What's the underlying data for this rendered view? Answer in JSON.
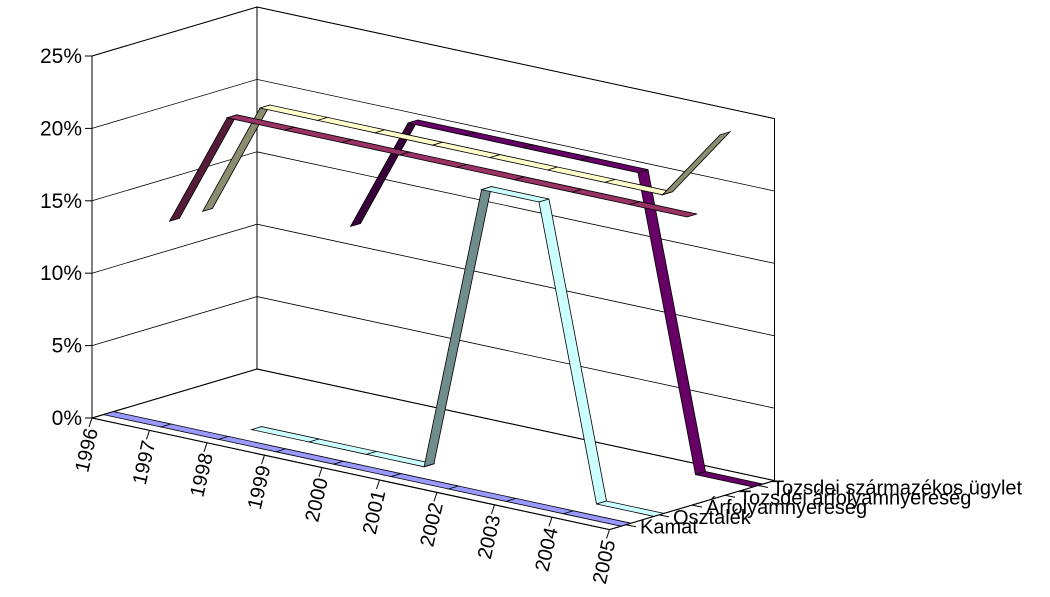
{
  "chart_data": {
    "type": "line",
    "title": "",
    "xlabel": "",
    "ylabel": "",
    "categories": [
      "1996",
      "1997",
      "1998",
      "1999",
      "2000",
      "2001",
      "2002",
      "2003",
      "2004",
      "2005"
    ],
    "y_ticks": [
      "0%",
      "5%",
      "10%",
      "15%",
      "20%",
      "25%"
    ],
    "ylim": [
      0,
      25
    ],
    "grid": true,
    "legend": "depth-axis-labels",
    "series": [
      {
        "name": "Kamat",
        "values": [
          0,
          0,
          0,
          0,
          0,
          0,
          0,
          0,
          0,
          0
        ],
        "color": "#9999ff"
      },
      {
        "name": "Osztalék",
        "values": [
          null,
          null,
          0,
          0,
          0,
          0,
          20,
          20,
          0,
          0
        ],
        "color": "#ccffff"
      },
      {
        "name": "Árfolyamnyereség",
        "values": [
          12,
          20,
          20,
          20,
          20,
          20,
          20,
          20,
          20,
          20
        ],
        "color": "#993366"
      },
      {
        "name": "Tozsdei árfolyamnyereség",
        "values": [
          12,
          20,
          20,
          20,
          20,
          20,
          20,
          20,
          20,
          25
        ],
        "color": "#ffffcc"
      },
      {
        "name": "Tozsdei származékos ügylet",
        "values": [
          null,
          null,
          12,
          20,
          20,
          20,
          20,
          20,
          0,
          0
        ],
        "color": "#660066"
      }
    ]
  }
}
